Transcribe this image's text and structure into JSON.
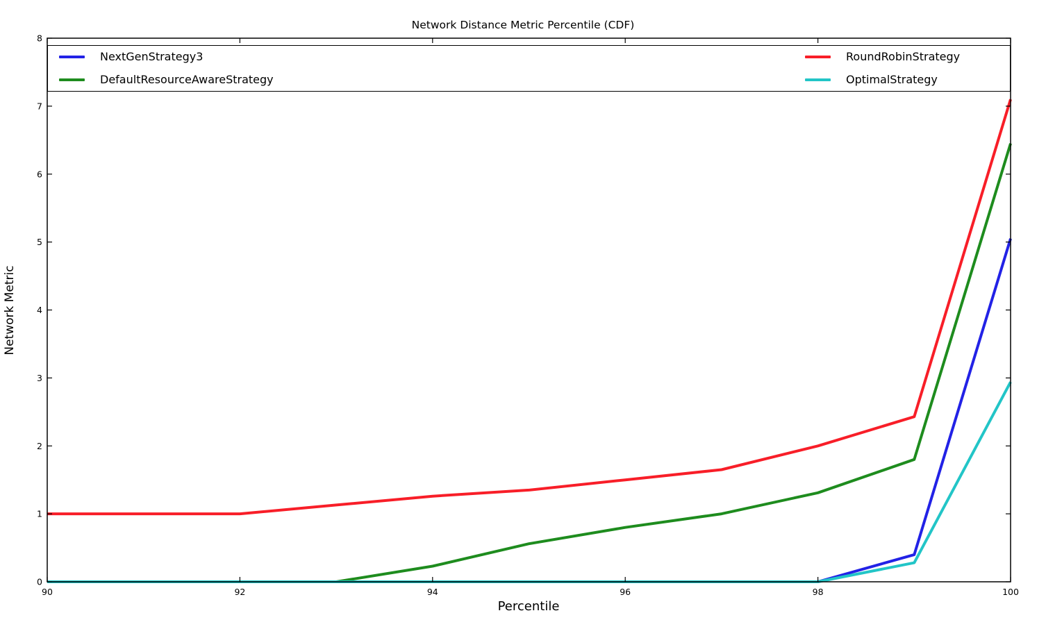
{
  "chart_data": {
    "type": "line",
    "title": "Network Distance Metric Percentile (CDF)",
    "xlabel": "Percentile",
    "ylabel": "Network Metric",
    "xlim": [
      90,
      100
    ],
    "ylim": [
      0,
      8
    ],
    "xticks": [
      90,
      92,
      94,
      96,
      98,
      100
    ],
    "yticks": [
      0,
      1,
      2,
      3,
      4,
      5,
      6,
      7,
      8
    ],
    "grid": false,
    "legend": {
      "position": "top-inside",
      "columns": 2,
      "border_color": "#000000",
      "background": "#ffffff"
    },
    "x": [
      90,
      91,
      92,
      93,
      94,
      95,
      96,
      97,
      98,
      99,
      100
    ],
    "series": [
      {
        "name": "NextGenStrategy3",
        "color": "#2222e6",
        "values": [
          0,
          0,
          0,
          0,
          0,
          0,
          0,
          0,
          0,
          0.4,
          5.05
        ]
      },
      {
        "name": "DefaultResourceAwareStrategy",
        "color": "#1e8c1e",
        "values": [
          0,
          0,
          0,
          0,
          0.23,
          0.56,
          0.8,
          1.0,
          1.31,
          1.8,
          6.45
        ]
      },
      {
        "name": "RoundRobinStrategy",
        "color": "#f81e28",
        "values": [
          1.0,
          1.0,
          1.0,
          1.13,
          1.26,
          1.35,
          1.5,
          1.65,
          2.0,
          2.43,
          7.1
        ]
      },
      {
        "name": "OptimalStrategy",
        "color": "#22c5c7",
        "values": [
          0,
          0,
          0,
          0,
          0,
          0,
          0,
          0,
          0,
          0.28,
          2.94
        ]
      }
    ],
    "axis_color": "#000000",
    "tick_style": "inward"
  }
}
